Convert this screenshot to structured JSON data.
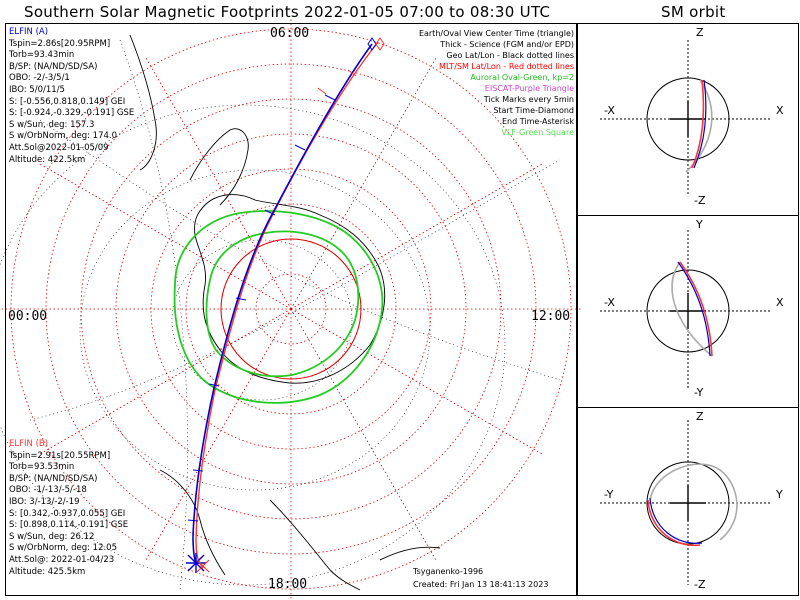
{
  "header": {
    "title": "Southern Solar Magnetic Footprints 2022-01-05 07:00 to 08:30 UTC",
    "orbit_title": "SM orbit"
  },
  "clock": {
    "top": "06:00",
    "left": "00:00",
    "right": "12:00",
    "bottom": "18:00"
  },
  "probe_a": {
    "name": "ELFIN (A)",
    "color": "#0000cc",
    "lines": [
      "Tspin=2.86s[20.95RPM]",
      "Torb=93.43min",
      "B/SP: (NA/ND/SD/SA)",
      "OBO: -2/-3/5/1",
      "IBO: 5/0/11/5",
      "S: [-0.556,0.818,0.149] GEI",
      "S: [-0.924,-0.329,-0.191] GSE",
      "S w/Sun, deg: 157.3",
      "S w/OrbNorm, deg: 174.0",
      "Att.Sol@2022-01-05/09",
      "Altitude: 422.5km"
    ]
  },
  "probe_b": {
    "name": "ELFIN (B)",
    "color": "#ff3333",
    "lines": [
      "Tspin=2.91s[20.55RPM]",
      "Torb=93.53min",
      "B/SP: (NA/ND/SD/SA)",
      "OBO: -1/-13/-5/-18",
      "IBO: 3/-13/-2/-19",
      "S: [0.342,-0.937,0.055] GEI",
      "S: [0.898,0.114,-0.191] GSE",
      "S w/Sun, deg: 26.12",
      "S w/OrbNorm, deg: 12.05",
      "Att.Sol@: 2022-01-04/23",
      "Altitude: 425.5km"
    ]
  },
  "legend": [
    {
      "text": "Earth/Oval View Center Time (triangle)",
      "color": "#000000"
    },
    {
      "text": "Thick - Science (FGM and/or EPD)",
      "color": "#000000"
    },
    {
      "text": "Geo Lat/Lon - Black dotted lines",
      "color": "#000000"
    },
    {
      "text": "MLT/SM Lat/Lon - Red dotted lines",
      "color": "#ff0000"
    },
    {
      "text": "Auroral Oval-Green, kp=2",
      "color": "#22bb22"
    },
    {
      "text": "EISCAT-Purple Triangle",
      "color": "#cc44cc"
    },
    {
      "text": "Tick Marks every 5min",
      "color": "#000000"
    },
    {
      "text": "Start Time-Diamond",
      "color": "#000000"
    },
    {
      "text": "End Time-Asterisk",
      "color": "#000000"
    },
    {
      "text": "VLF-Green Square",
      "color": "#55dd55"
    }
  ],
  "footer": {
    "credit": "Tsyganenko-1996",
    "created": "Created: Fri Jan 13 18:41:13 2023"
  },
  "orbit_panels": [
    {
      "top": "Z",
      "bottom": "-Z",
      "left": "-X",
      "right": "X"
    },
    {
      "top": "Y",
      "bottom": "-Y",
      "left": "-X",
      "right": "X"
    },
    {
      "top": "Z",
      "bottom": "-Z",
      "left": "-Y",
      "right": "Y"
    }
  ],
  "colors": {
    "probe_a": "#0000cc",
    "probe_b": "#ff3333",
    "oval": "#22cc22",
    "sm_grid": "#dd0000",
    "geo_grid": "#000000"
  }
}
